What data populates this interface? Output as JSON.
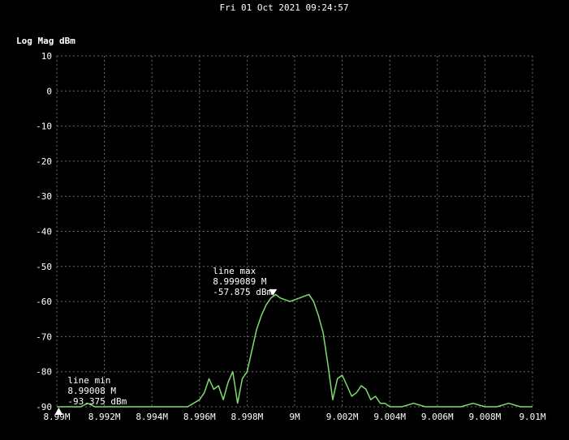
{
  "header": {
    "timestamp": "Fri 01 Oct 2021 09:24:57"
  },
  "colors": {
    "background": "#000000",
    "trace": "#7ddc6e",
    "grid": "#6a6a6a",
    "text": "#ffffff"
  },
  "chart_data": {
    "type": "line",
    "title": "",
    "xlabel": "",
    "ylabel": "Log Mag dBm",
    "xlim": [
      8.99,
      9.01
    ],
    "ylim": [
      -90,
      10
    ],
    "grid": true,
    "x_ticks": [
      8.99,
      8.992,
      8.994,
      8.996,
      8.998,
      9.0,
      9.002,
      9.004,
      9.006,
      9.008,
      9.01
    ],
    "x_tick_labels": [
      "8.99M",
      "8.992M",
      "8.994M",
      "8.996M",
      "8.998M",
      "9M",
      "9.002M",
      "9.004M",
      "9.006M",
      "9.008M",
      "9.01M"
    ],
    "y_ticks": [
      10,
      0,
      -10,
      -20,
      -30,
      -40,
      -50,
      -60,
      -70,
      -80,
      -90
    ],
    "y_tick_labels": [
      "10",
      "0",
      "-10",
      "-20",
      "-30",
      "-40",
      "-50",
      "-60",
      "-70",
      "-80",
      "-90"
    ],
    "series": [
      {
        "x": [
          8.99,
          8.991,
          8.9913,
          8.9916,
          8.992,
          8.9925,
          8.993,
          8.9935,
          8.994,
          8.9945,
          8.995,
          8.9955,
          8.996,
          8.9962,
          8.9964,
          8.9966,
          8.9968,
          8.997,
          8.9972,
          8.9974,
          8.9976,
          8.9978,
          8.998,
          8.9982,
          8.9984,
          8.9986,
          8.9988,
          8.999,
          8.9992,
          8.9994,
          8.9996,
          8.9998,
          9.0,
          9.0002,
          9.0004,
          9.0006,
          9.0008,
          9.001,
          9.0012,
          9.0014,
          9.0016,
          9.0018,
          9.002,
          9.0022,
          9.0024,
          9.0026,
          9.0028,
          9.003,
          9.0032,
          9.0034,
          9.0036,
          9.0038,
          9.004,
          9.0045,
          9.005,
          9.0055,
          9.006,
          9.0065,
          9.007,
          9.0075,
          9.008,
          9.0085,
          9.009,
          9.0095,
          9.01
        ],
        "y": [
          -90,
          -90,
          -89,
          -90,
          -90,
          -90,
          -90,
          -90,
          -90,
          -90,
          -90,
          -90,
          -88,
          -86,
          -82,
          -85,
          -84,
          -88,
          -83,
          -80,
          -89,
          -82,
          -80,
          -74,
          -68,
          -64,
          -61,
          -59,
          -58,
          -59,
          -59.5,
          -60,
          -59.5,
          -59,
          -58.5,
          -58,
          -60,
          -64,
          -69,
          -78,
          -88,
          -82,
          -81,
          -84,
          -87,
          -86,
          -84,
          -85,
          -88,
          -87,
          -89,
          -89,
          -90,
          -90,
          -89,
          -90,
          -90,
          -90,
          -90,
          -89,
          -90,
          -90,
          -89,
          -90,
          -90
        ]
      }
    ],
    "markers": [
      {
        "label": "line max",
        "freq_text": "8.999089 M",
        "value_text": "-57.875 dBm",
        "x": 8.999089,
        "y": -57.875,
        "direction": "down"
      },
      {
        "label": "line min",
        "freq_text": "8.99008 M",
        "value_text": "-93.375 dBm",
        "x": 8.99008,
        "y": -93.375,
        "direction": "up"
      }
    ]
  }
}
